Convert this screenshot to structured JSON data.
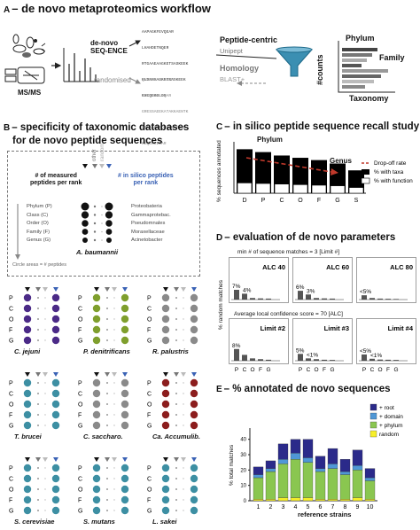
{
  "panel_a": {
    "letter": "A",
    "title": "– de novo metaproteomics workflow",
    "msms": "MS/MS",
    "denovo": [
      "de-novo",
      "SEQ-ENCE"
    ],
    "randomised": "randomised",
    "sequences_top": [
      "AAPAGKFEVQEAR",
      "LHAHDETNQER",
      "RTGAAEAAGKETSASKEEK",
      "RLDANSAGKETSASKEEK",
      "KREQEKGLDR"
    ],
    "sequences_bottom": [
      "QVAEFEAPAAGKR",
      "TECNHDHLIQAR",
      "GRESSAEEKATAKKAENTK",
      "SSEAAHREDGLKKAENTK",
      "KEQEKGLIAR"
    ],
    "peptide_centric": "Peptide-centric",
    "unipept": "Unipept",
    "homology": "Homology",
    "blast": "BLAST+",
    "phylum": "Phylum",
    "family": "Family",
    "counts": "#counts",
    "taxonomy": "Taxonomy"
  },
  "panel_b": {
    "letter": "B",
    "title_line1": "– specificity of taxonomic databases",
    "title_line2": "for de novo peptide sequences",
    "measured": [
      "# of measured",
      "peptides per rank"
    ],
    "in_silico": [
      "# in silico peptides",
      "per rank"
    ],
    "other": "other",
    "random": "random",
    "ranks": [
      "Phylum (P)",
      "Class (C)",
      "Order (O)",
      "Family (F)",
      "Genus (G)"
    ],
    "taxa": [
      "Proteobateria",
      "Gammaprotebac.",
      "Pseudomnales",
      "Moraxellaceae",
      "Acinetobacter"
    ],
    "example_species": "A. baumannii",
    "circle_note": "Circle areas = # peptides",
    "rank_letters": [
      "P",
      "C",
      "O",
      "F",
      "G"
    ],
    "species": [
      "C. jejuni",
      "P. denitrificans",
      "R. palustris",
      "T. brucei",
      "C. saccharo.",
      "Ca. Accumulib.",
      "S. cerevisiae",
      "S. mutans",
      "L. sakei"
    ],
    "species_colors": [
      "#4b2a87",
      "#7f9f2d",
      "#8a8a8a",
      "#3d8fa3",
      "#8a8a8a",
      "#8c1d1d",
      "#3d8fa3",
      "#3d8fa3",
      "#3d8fa3"
    ]
  },
  "panel_c": {
    "letter": "C",
    "title": "– in silico peptide sequence recall study",
    "ylabel": "% sequences annotated",
    "phylum": "Phylum",
    "genus": "Genus",
    "legend": [
      "Drop-off rate",
      "% with taxa",
      "% with function"
    ]
  },
  "panel_d": {
    "letter": "D",
    "title": "– evaluation of de novo parameters",
    "ylabel": "% random matches",
    "top_caption": "min # of sequence matches = 3 [Limit #]",
    "bottom_caption": "Average local confidence score = 70 [ALC]",
    "xlabels": [
      "P",
      "C",
      "O",
      "F",
      "G"
    ],
    "top_boxes": [
      {
        "title": "ALC 40",
        "label1": "7%",
        "label2": "4%"
      },
      {
        "title": "ALC 60",
        "label1": "6%",
        "label2": "3%"
      },
      {
        "title": "ALC 80",
        "label1": "<5%",
        "label2": ""
      }
    ],
    "bottom_boxes": [
      {
        "title": "Limit #2",
        "label1": "8%",
        "label2": ""
      },
      {
        "title": "Limit #3",
        "label1": "5%",
        "label2": "<1%"
      },
      {
        "title": "Limit #4",
        "label1": "<5%",
        "label2": "<1%"
      }
    ]
  },
  "panel_e": {
    "letter": "E",
    "title": "– % annotated de novo sequences",
    "ylabel": "% total matches",
    "xlabel": "reference strains",
    "legend": [
      "+ root",
      "+ domain",
      "+ phylum",
      "random"
    ]
  },
  "chart_data": [
    {
      "type": "bar",
      "categories": [
        "D",
        "P",
        "C",
        "O",
        "F",
        "G",
        "S"
      ],
      "series": [
        {
          "name": "% with taxa",
          "values": [
            77,
            72,
            66,
            62,
            58,
            52,
            40
          ]
        },
        {
          "name": "% with function",
          "values": [
            18,
            17,
            16,
            15,
            14,
            13,
            10
          ]
        }
      ],
      "ylim": [
        0,
        90
      ]
    },
    {
      "type": "bar",
      "categories": [
        "1",
        "2",
        "3",
        "4",
        "5",
        "6",
        "7",
        "8",
        "9",
        "10"
      ],
      "series": [
        {
          "name": "random",
          "values": [
            1,
            1,
            2,
            2,
            2,
            1,
            1,
            1,
            2,
            1
          ]
        },
        {
          "name": "+ phylum",
          "values": [
            14,
            18,
            22,
            25,
            23,
            18,
            20,
            16,
            18,
            12
          ]
        },
        {
          "name": "+ domain",
          "values": [
            2,
            2,
            3,
            4,
            3,
            2,
            3,
            2,
            3,
            2
          ]
        },
        {
          "name": "+ root",
          "values": [
            5,
            5,
            10,
            9,
            12,
            8,
            10,
            8,
            10,
            6
          ]
        }
      ],
      "xlabel": "reference strains",
      "ylabel": "% total matches",
      "yticks": [
        0,
        10,
        20,
        30,
        40
      ],
      "ylim": [
        0,
        45
      ]
    }
  ]
}
